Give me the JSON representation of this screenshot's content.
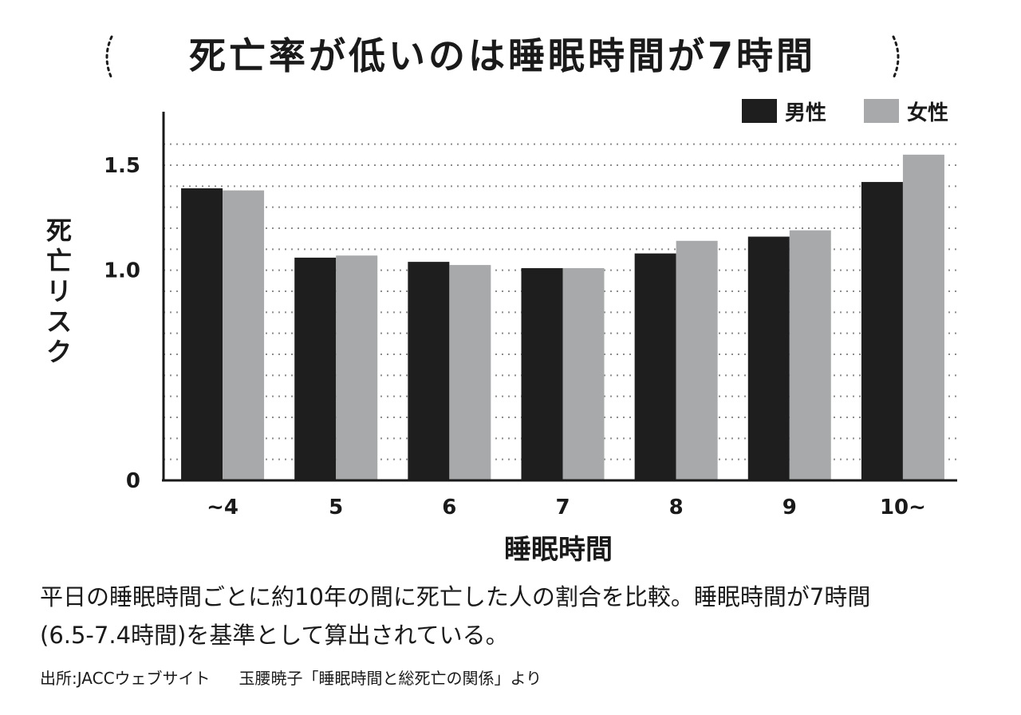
{
  "title": "死亡率が低いのは睡眠時間が7時間",
  "chart_data": {
    "type": "bar",
    "categories": [
      "~4",
      "5",
      "6",
      "7",
      "8",
      "9",
      "10~"
    ],
    "series": [
      {
        "name": "男性",
        "color": "#1e1e1e",
        "values": [
          1.39,
          1.06,
          1.04,
          1.01,
          1.08,
          1.16,
          1.42
        ]
      },
      {
        "name": "女性",
        "color": "#a7a9aa",
        "values": [
          1.38,
          1.07,
          1.025,
          1.01,
          1.14,
          1.19,
          1.55
        ]
      }
    ],
    "xlabel": "睡眠時間",
    "ylabel": "死亡リスク",
    "yticks": [
      {
        "value": 0,
        "label": "0"
      },
      {
        "value": 1.0,
        "label": "1.0"
      },
      {
        "value": 1.5,
        "label": "1.5"
      }
    ],
    "ylim": [
      0,
      1.65
    ],
    "grid": "dotted, every 0.1",
    "legend": "top-right"
  },
  "caption": {
    "line1": "平日の睡眠時間ごとに約10年の間に死亡した人の割合を比較。睡眠時間が7時間",
    "line2": "(6.5-7.4時間)を基準として算出されている。"
  },
  "source": {
    "part1": "出所:JACCウェブサイト",
    "part2": "玉腰暁子「睡眠時間と総死亡の関係」より"
  }
}
